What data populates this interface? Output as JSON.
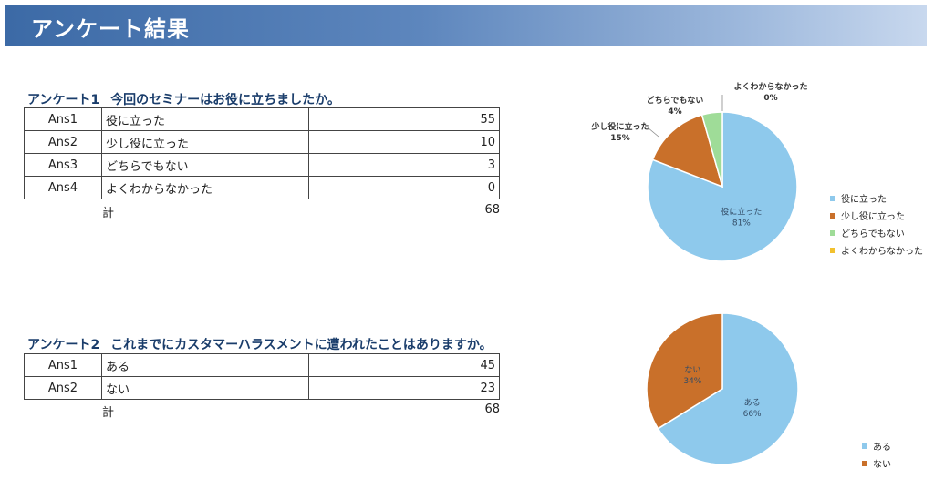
{
  "header": {
    "title": "アンケート結果"
  },
  "colors": {
    "lightblue": "#8ec9ec",
    "orange": "#c9702a",
    "lightgreen": "#9fdc98",
    "yellow": "#f2c12e"
  },
  "survey1": {
    "number": "アンケート1",
    "question": "今回のセミナーはお役に立ちましたか。",
    "rows": [
      {
        "id": "Ans1",
        "label": "役に立った",
        "count": "55"
      },
      {
        "id": "Ans2",
        "label": "少し役に立った",
        "count": "10"
      },
      {
        "id": "Ans3",
        "label": "どちらでもない",
        "count": "3"
      },
      {
        "id": "Ans4",
        "label": "よくわからなかった",
        "count": "0"
      }
    ],
    "total_label": "計",
    "total_value": "68"
  },
  "survey2": {
    "number": "アンケート2",
    "question": "これまでにカスタマーハラスメントに遭われたことはありますか。",
    "rows": [
      {
        "id": "Ans1",
        "label": "ある",
        "count": "45"
      },
      {
        "id": "Ans2",
        "label": "ない",
        "count": "23"
      }
    ],
    "total_label": "計",
    "total_value": "68"
  },
  "chart_data": [
    {
      "type": "pie",
      "categories": [
        "役に立った",
        "少し役に立った",
        "どちらでもない",
        "よくわからなかった"
      ],
      "values": [
        55,
        10,
        3,
        0
      ],
      "percent_labels": [
        "81%",
        "15%",
        "4%",
        "0%"
      ],
      "colors": [
        "#8ec9ec",
        "#c9702a",
        "#9fdc98",
        "#f2c12e"
      ],
      "legend": "right"
    },
    {
      "type": "pie",
      "categories": [
        "ある",
        "ない"
      ],
      "values": [
        45,
        23
      ],
      "percent_labels": [
        "66%",
        "34%"
      ],
      "colors": [
        "#8ec9ec",
        "#c9702a"
      ],
      "legend": "bottom-right"
    }
  ]
}
